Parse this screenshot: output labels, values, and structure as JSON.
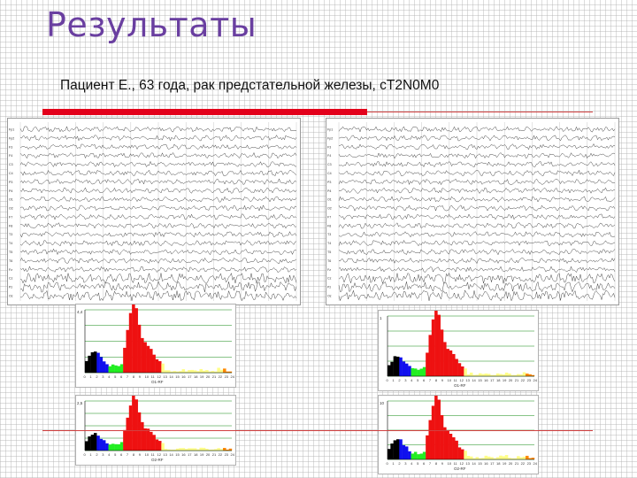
{
  "slide": {
    "title": "Результаты",
    "subtitle": "Пациент Е., 63 года, рак предстательной железы, cT2N0M0"
  },
  "colors": {
    "title": "#6a3fa0",
    "accent_bar": "#e3001b",
    "hist_black": "#000000",
    "hist_blue": "#1010ee",
    "hist_green": "#22ee22",
    "hist_red": "#ee1111",
    "hist_yellow": "#ffff88",
    "hist_orange": "#ff8800",
    "hist_grid": "#118811"
  },
  "eeg": {
    "channels_left": [
      "Fp1",
      "Fp2",
      "F3",
      "F4",
      "C3",
      "C4",
      "P3",
      "P4",
      "O1",
      "O2",
      "F7",
      "F8",
      "T3",
      "T4",
      "T5",
      "T6",
      "Fz",
      "Cz",
      "Pz",
      "Oz"
    ],
    "channels_right": [
      "Fp1",
      "Fp2",
      "F3",
      "F4",
      "C3",
      "C4",
      "P3",
      "P4",
      "O1",
      "O2",
      "F7",
      "F8",
      "T3",
      "T4",
      "T5",
      "T6",
      "Fz",
      "Cz",
      "Pz",
      "Oz"
    ]
  },
  "histograms": [
    {
      "y_max_label": "4,4",
      "x_label": "O1-RF"
    },
    {
      "y_max_label": "1",
      "x_label": "O1-RF"
    },
    {
      "y_max_label": "2,5",
      "x_label": "O2-RF"
    },
    {
      "y_max_label": "10",
      "x_label": "O2-RF"
    }
  ],
  "hist_ticks": [
    "0",
    "1",
    "2",
    "3",
    "4",
    "5",
    "6",
    "7",
    "8",
    "9",
    "10",
    "11",
    "12",
    "13",
    "14",
    "15",
    "16",
    "17",
    "18",
    "19",
    "20",
    "21",
    "22",
    "23",
    "24"
  ]
}
